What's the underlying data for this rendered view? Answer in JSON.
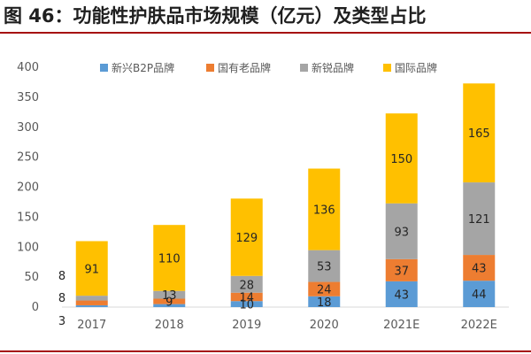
{
  "header": {
    "title": "图 46：功能性护肤品市场规模（亿元）及类型占比"
  },
  "colors": {
    "rule": "#a60f0f",
    "axis": "#d9d9d9",
    "series": [
      "#5b9bd5",
      "#ed7d31",
      "#a5a5a5",
      "#ffc000"
    ]
  },
  "chart_data": {
    "type": "bar",
    "stacked": true,
    "title": "功能性护肤品市场规模（亿元）及类型占比",
    "xlabel": "",
    "ylabel": "",
    "ylim": [
      0,
      400
    ],
    "yticks": [
      "0",
      "50",
      "100",
      "150",
      "200",
      "250",
      "300",
      "350",
      "400"
    ],
    "categories": [
      "2017",
      "2018",
      "2019",
      "2020",
      "2021E",
      "2022E"
    ],
    "legend_position": "top",
    "series": [
      {
        "name": "新兴B2P品牌",
        "values": [
          3,
          5,
          10,
          18,
          43,
          44
        ],
        "labels": [
          "3",
          "",
          "10",
          "18",
          "43",
          "44"
        ]
      },
      {
        "name": "国有老品牌",
        "values": [
          8,
          9,
          14,
          24,
          37,
          43
        ],
        "labels": [
          "8",
          "9",
          "14",
          "24",
          "37",
          "43"
        ]
      },
      {
        "name": "新锐品牌",
        "values": [
          8,
          13,
          28,
          53,
          93,
          121
        ],
        "labels": [
          "8",
          "13",
          "28",
          "53",
          "93",
          "121"
        ]
      },
      {
        "name": "国际品牌",
        "values": [
          91,
          110,
          129,
          136,
          150,
          165
        ],
        "labels": [
          "91",
          "110",
          "129",
          "136",
          "150",
          "165"
        ]
      }
    ]
  }
}
